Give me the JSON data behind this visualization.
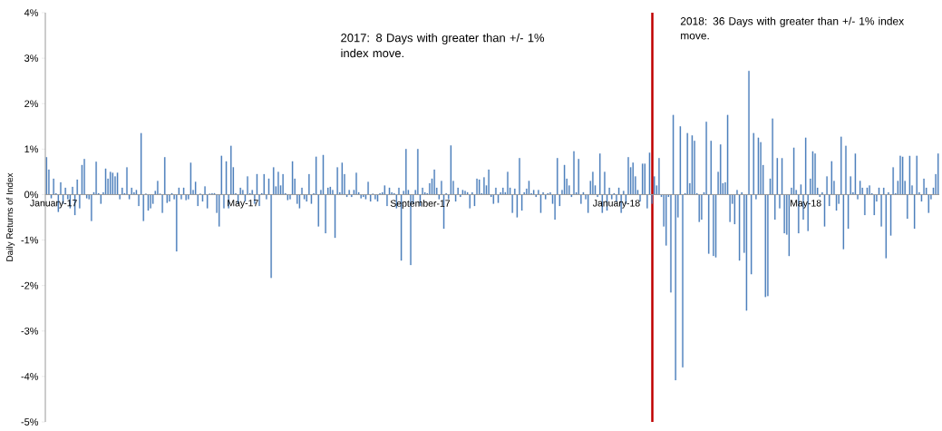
{
  "chart_data": {
    "type": "bar",
    "ylabel": "Daily Returns of Index",
    "categories": [
      null,
      null,
      null,
      "January-17",
      null,
      null,
      null,
      null,
      null,
      null,
      null,
      null,
      null,
      null,
      null,
      null,
      null,
      null,
      null,
      null,
      null,
      null,
      null,
      null,
      null,
      null,
      null,
      null,
      null,
      null,
      null,
      null,
      null,
      null,
      null,
      null,
      null,
      null,
      null,
      null,
      null,
      null,
      null,
      null,
      null,
      null,
      null,
      null,
      null,
      null,
      null,
      null,
      null,
      null,
      null,
      null,
      null,
      null,
      null,
      null,
      null,
      null,
      null,
      null,
      null,
      null,
      null,
      null,
      null,
      null,
      null,
      null,
      null,
      null,
      null,
      null,
      null,
      null,
      null,
      null,
      null,
      null,
      null,
      "May-17",
      null,
      null,
      null,
      null,
      null,
      null,
      null,
      null,
      null,
      null,
      null,
      null,
      null,
      null,
      null,
      null,
      null,
      null,
      null,
      null,
      null,
      null,
      null,
      null,
      null,
      null,
      null,
      null,
      null,
      null,
      null,
      null,
      null,
      null,
      null,
      null,
      null,
      null,
      null,
      null,
      null,
      null,
      null,
      null,
      null,
      null,
      null,
      null,
      null,
      null,
      null,
      null,
      null,
      null,
      null,
      null,
      null,
      null,
      null,
      null,
      null,
      null,
      null,
      null,
      null,
      null,
      null,
      null,
      null,
      null,
      null,
      null,
      null,
      null,
      "September-17",
      null,
      null,
      null,
      null,
      null,
      null,
      null,
      null,
      null,
      null,
      null,
      null,
      null,
      null,
      null,
      null,
      null,
      null,
      null,
      null,
      null,
      null,
      null,
      null,
      null,
      null,
      null,
      null,
      null,
      null,
      null,
      null,
      null,
      null,
      null,
      null,
      null,
      null,
      null,
      null,
      null,
      null,
      null,
      null,
      null,
      null,
      null,
      null,
      null,
      null,
      null,
      null,
      null,
      null,
      null,
      null,
      null,
      null,
      null,
      null,
      null,
      null,
      null,
      null,
      null,
      null,
      null,
      null,
      null,
      null,
      null,
      null,
      null,
      null,
      null,
      null,
      null,
      null,
      null,
      null,
      null,
      null,
      "January-18",
      null,
      null,
      null,
      null,
      null,
      null,
      null,
      null,
      null,
      null,
      null,
      null,
      null,
      null,
      null,
      null,
      null,
      null,
      null,
      null,
      null,
      null,
      null,
      null,
      null,
      null,
      null,
      null,
      null,
      null,
      null,
      null,
      null,
      null,
      null,
      null,
      null,
      null,
      null,
      null,
      null,
      null,
      null,
      null,
      null,
      null,
      null,
      null,
      null,
      null,
      null,
      null,
      null,
      null,
      null,
      null,
      null,
      null,
      null,
      null,
      null,
      null,
      null,
      null,
      null,
      null,
      null,
      null,
      null,
      null,
      null,
      null,
      null,
      null,
      null,
      null,
      null,
      null,
      null,
      "May-18",
      null,
      null,
      null,
      null,
      null,
      null,
      null,
      null,
      null,
      null,
      null,
      null,
      null,
      null,
      null,
      null,
      null,
      null,
      null,
      null,
      null,
      null,
      null,
      null,
      null,
      null,
      null,
      null,
      null,
      null,
      null,
      null,
      null,
      null,
      null,
      null,
      null,
      null,
      null,
      null,
      null,
      null,
      null,
      null,
      null,
      null,
      null,
      null,
      null,
      null,
      null,
      null,
      null,
      null,
      null,
      null
    ],
    "values": [
      0.82,
      0.55,
      -0.08,
      0.35,
      0.03,
      -0.38,
      0.27,
      -0.2,
      0.15,
      -0.1,
      -0.3,
      0.17,
      -0.45,
      0.33,
      -0.3,
      0.65,
      0.78,
      -0.08,
      -0.1,
      -0.58,
      0.05,
      0.72,
      0.03,
      -0.2,
      0.05,
      0.57,
      0.35,
      0.5,
      0.48,
      0.4,
      0.48,
      -0.1,
      0.15,
      0.03,
      0.6,
      -0.1,
      0.15,
      0.05,
      0.1,
      -0.25,
      1.35,
      -0.58,
      0.02,
      -0.35,
      -0.3,
      -0.2,
      0.08,
      0.3,
      0.02,
      -0.4,
      0.82,
      -0.18,
      -0.15,
      0.03,
      -0.1,
      -1.25,
      0.15,
      -0.1,
      0.15,
      -0.12,
      -0.1,
      0.7,
      0.1,
      0.28,
      -0.25,
      0.02,
      -0.15,
      0.18,
      -0.3,
      0.02,
      0.03,
      0.03,
      -0.4,
      -0.7,
      0.85,
      -0.3,
      0.73,
      -0.3,
      1.07,
      0.6,
      0.03,
      -0.2,
      0.15,
      0.1,
      -0.15,
      0.4,
      0.03,
      0.1,
      -0.2,
      0.45,
      -0.25,
      0.03,
      0.45,
      -0.1,
      0.35,
      -1.83,
      0.6,
      0.18,
      0.5,
      0.2,
      0.45,
      0.03,
      -0.12,
      -0.1,
      0.73,
      0.35,
      -0.2,
      -0.3,
      0.15,
      -0.1,
      -0.15,
      0.45,
      -0.2,
      0.03,
      0.83,
      -0.7,
      0.1,
      0.87,
      -0.85,
      0.15,
      0.17,
      0.1,
      -0.95,
      0.6,
      0.05,
      0.7,
      0.45,
      -0.05,
      0.1,
      -0.05,
      0.1,
      0.48,
      0.05,
      -0.08,
      -0.05,
      -0.1,
      0.28,
      -0.15,
      0.02,
      -0.1,
      -0.15,
      0.03,
      0.05,
      0.2,
      -0.25,
      0.15,
      0.05,
      0.03,
      -0.3,
      0.15,
      -1.45,
      0.08,
      1.0,
      0.1,
      -1.55,
      -0.2,
      0.1,
      1.0,
      -0.25,
      0.15,
      0.05,
      0.03,
      0.25,
      0.35,
      0.55,
      0.15,
      -0.1,
      0.3,
      -0.75,
      0.03,
      -0.1,
      1.08,
      0.3,
      -0.15,
      0.15,
      -0.05,
      0.1,
      0.08,
      0.05,
      -0.3,
      0.05,
      -0.25,
      0.35,
      0.33,
      0.03,
      0.38,
      0.2,
      0.55,
      -0.05,
      -0.2,
      0.15,
      -0.18,
      0.05,
      0.15,
      0.05,
      0.5,
      0.15,
      -0.4,
      0.13,
      -0.5,
      0.8,
      -0.35,
      0.05,
      0.13,
      0.3,
      0.03,
      0.1,
      -0.05,
      0.1,
      -0.4,
      0.05,
      -0.1,
      0.03,
      0.05,
      -0.2,
      -0.55,
      0.8,
      -0.25,
      0.1,
      0.65,
      0.35,
      0.2,
      -0.05,
      0.95,
      0.05,
      0.78,
      -0.2,
      0.05,
      -0.1,
      -0.4,
      0.3,
      0.5,
      0.2,
      -0.05,
      0.9,
      -0.4,
      0.5,
      -0.35,
      0.15,
      -0.1,
      0.03,
      -0.15,
      0.15,
      -0.4,
      0.08,
      -0.2,
      0.82,
      0.6,
      0.7,
      0.4,
      0.1,
      -0.15,
      0.68,
      0.68,
      -0.3,
      0.92,
      -0.2,
      0.4,
      0.2,
      0.8,
      -0.05,
      -0.7,
      -1.12,
      -0.05,
      -2.15,
      1.75,
      -4.08,
      -0.5,
      1.5,
      -3.8,
      0.03,
      1.35,
      0.25,
      1.3,
      1.18,
      0.03,
      -0.6,
      -0.55,
      0.05,
      1.6,
      -1.3,
      1.18,
      -1.35,
      -1.38,
      0.5,
      1.1,
      0.25,
      0.27,
      1.75,
      -0.6,
      -0.2,
      -0.65,
      0.1,
      -1.45,
      0.05,
      -1.28,
      -2.55,
      2.72,
      -1.75,
      1.35,
      -0.1,
      1.25,
      1.15,
      0.65,
      -2.25,
      -2.23,
      0.35,
      1.67,
      -0.55,
      0.8,
      -0.3,
      0.8,
      -0.85,
      -0.88,
      -1.35,
      0.15,
      1.03,
      0.1,
      -0.85,
      0.22,
      -0.55,
      1.25,
      -0.8,
      0.35,
      0.95,
      0.9,
      0.15,
      -0.05,
      0.05,
      -0.7,
      0.4,
      -0.25,
      0.73,
      0.3,
      -0.35,
      -0.2,
      1.27,
      -1.2,
      1.07,
      -0.75,
      0.4,
      0.05,
      0.9,
      -0.1,
      0.3,
      0.15,
      -0.45,
      0.15,
      0.2,
      0.03,
      -0.45,
      -0.15,
      0.15,
      -0.7,
      0.15,
      -1.4,
      0.05,
      -0.9,
      0.6,
      0.03,
      0.3,
      0.85,
      0.83,
      0.3,
      -0.53,
      0.85,
      0.2,
      -0.75,
      0.85,
      0.05,
      -0.15,
      0.35,
      0.15,
      -0.4,
      -0.1,
      0.15,
      0.45,
      0.9
    ],
    "color": "#4f81bd",
    "ylim": [
      -5,
      4
    ],
    "yticks": [
      {
        "value": -5,
        "label": "-5%"
      },
      {
        "value": -4,
        "label": "-4%"
      },
      {
        "value": -3,
        "label": "-3%"
      },
      {
        "value": -2,
        "label": "-2%"
      },
      {
        "value": -1,
        "label": "-1%"
      },
      {
        "value": 0,
        "label": "0%"
      },
      {
        "value": 1,
        "label": "1%"
      },
      {
        "value": 2,
        "label": "2%"
      },
      {
        "value": 3,
        "label": "3%"
      },
      {
        "value": 4,
        "label": "4%"
      }
    ],
    "annotations": [
      "2017: 8 Days with greater than +/- 1% index move.",
      "2018: 36 Days with greater than +/- 1% index move."
    ],
    "grid": false
  }
}
